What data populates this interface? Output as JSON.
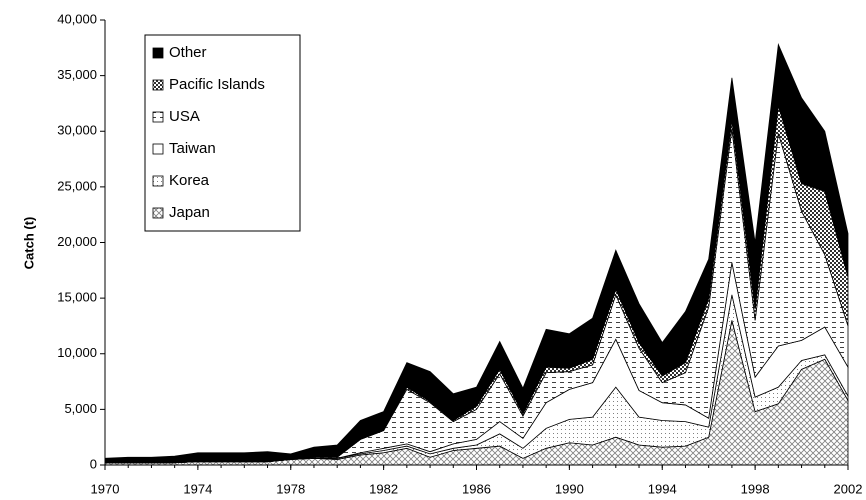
{
  "chart_data": {
    "type": "stacked_area",
    "y_label": "Catch (t)",
    "x": [
      1970,
      1971,
      1972,
      1973,
      1974,
      1975,
      1976,
      1977,
      1978,
      1979,
      1980,
      1981,
      1982,
      1983,
      1984,
      1985,
      1986,
      1987,
      1988,
      1989,
      1990,
      1991,
      1992,
      1993,
      1994,
      1995,
      1996,
      1997,
      1998,
      1999,
      2000,
      2001,
      2002
    ],
    "xlim": [
      1970,
      2002
    ],
    "xticks": [
      1970,
      1974,
      1978,
      1982,
      1986,
      1990,
      1994,
      1998,
      2002
    ],
    "ylim": [
      0,
      40000
    ],
    "yticks": [
      0,
      {
        "value": 5000,
        "label": "5,000"
      },
      {
        "value": 10000,
        "label": "10,000"
      },
      {
        "value": 15000,
        "label": "15,000"
      },
      {
        "value": 20000,
        "label": "20,000"
      },
      {
        "value": 25000,
        "label": "25,000"
      },
      {
        "value": 30000,
        "label": "30,000"
      },
      {
        "value": 35000,
        "label": "35,000"
      },
      {
        "value": 40000,
        "label": "40,000"
      }
    ],
    "legend": "upper left",
    "series": [
      {
        "name": "Japan",
        "color": "#808080",
        "pattern": "crosshatch",
        "values": [
          200,
          200,
          200,
          200,
          300,
          300,
          300,
          300,
          500,
          600,
          500,
          900,
          1100,
          1500,
          700,
          1300,
          1500,
          1700,
          600,
          1500,
          2000,
          1800,
          2500,
          1800,
          1600,
          1700,
          2500,
          13000,
          4800,
          5500,
          8600,
          9500,
          5800
        ]
      },
      {
        "name": "Korea",
        "color": "#808080",
        "pattern": "dots",
        "values": [
          0,
          0,
          0,
          0,
          0,
          0,
          0,
          0,
          0,
          0,
          100,
          100,
          200,
          200,
          300,
          200,
          300,
          1100,
          900,
          1800,
          2100,
          2500,
          4500,
          2500,
          2400,
          2200,
          900,
          2300,
          1300,
          1500,
          800,
          400,
          400
        ]
      },
      {
        "name": "Taiwan",
        "color": "#ffffff",
        "pattern": "solid",
        "values": [
          0,
          0,
          0,
          0,
          0,
          0,
          0,
          0,
          0,
          0,
          0,
          100,
          200,
          200,
          200,
          400,
          500,
          1100,
          900,
          2300,
          2700,
          3100,
          4300,
          2400,
          1600,
          1500,
          800,
          2900,
          1800,
          3700,
          1800,
          2500,
          2600
        ]
      },
      {
        "name": "USA",
        "color": "#404040",
        "pattern": "dashes",
        "values": [
          0,
          0,
          0,
          0,
          0,
          0,
          0,
          0,
          0,
          100,
          100,
          1200,
          1600,
          4900,
          4400,
          2000,
          2700,
          4300,
          2000,
          2700,
          1600,
          1600,
          4000,
          3800,
          1800,
          2900,
          10000,
          12000,
          5100,
          19100,
          11600,
          6500,
          3700
        ]
      },
      {
        "name": "Pacific Islands",
        "color": "#303030",
        "pattern": "checker",
        "values": [
          0,
          0,
          0,
          0,
          0,
          0,
          0,
          0,
          0,
          0,
          0,
          0,
          0,
          200,
          100,
          100,
          300,
          400,
          200,
          500,
          300,
          500,
          500,
          500,
          600,
          900,
          800,
          800,
          1000,
          2500,
          2500,
          5700,
          4400
        ]
      },
      {
        "name": "Other",
        "color": "#000000",
        "pattern": "solid",
        "values": [
          400,
          500,
          500,
          600,
          800,
          800,
          800,
          900,
          500,
          900,
          1100,
          1700,
          1700,
          2200,
          2700,
          2400,
          1700,
          2500,
          2300,
          3400,
          3100,
          3700,
          3500,
          3500,
          3000,
          4600,
          3500,
          3800,
          6000,
          5500,
          7700,
          5400,
          3900
        ]
      }
    ]
  }
}
